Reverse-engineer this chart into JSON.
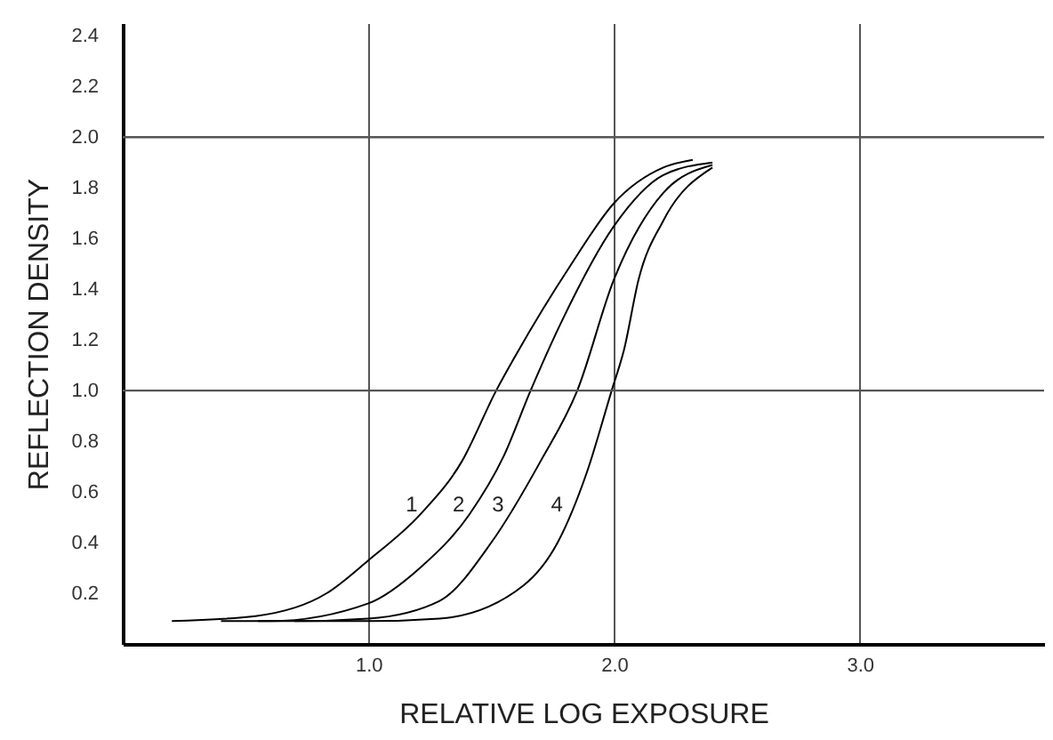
{
  "chart_data": {
    "type": "line",
    "xlabel": "RELATIVE LOG EXPOSURE",
    "ylabel": "REFLECTION DENSITY",
    "xlim": [
      0,
      3.75
    ],
    "ylim": [
      0,
      2.45
    ],
    "xticks": [
      {
        "value": 1,
        "label": "1.0"
      },
      {
        "value": 2,
        "label": "2.0"
      },
      {
        "value": 3,
        "label": "3.0"
      }
    ],
    "yticks": [
      0.2,
      0.4,
      0.6,
      0.8,
      {
        "value": 1,
        "label": "1.0"
      },
      1.2,
      1.4,
      1.6,
      1.8,
      {
        "value": 2,
        "label": "2.0"
      },
      2.2,
      2.4
    ],
    "grid": "x",
    "marker": "none",
    "line_style": "solid",
    "ref_lines": [
      {
        "axis": "y",
        "value": 1,
        "color": "#555555"
      },
      {
        "axis": "y",
        "value": 2,
        "color": "#555555"
      }
    ],
    "series": [
      {
        "name": "1",
        "color": "#000000",
        "x": [
          0.2,
          0.54,
          0.83,
          1.0,
          1.21,
          1.38,
          1.52,
          1.6,
          1.82,
          2.0,
          2.2,
          2.32
        ],
        "values": [
          0.09,
          0.11,
          0.2,
          0.33,
          0.51,
          0.72,
          1.0,
          1.14,
          1.49,
          1.74,
          1.88,
          1.91
        ]
      },
      {
        "name": "2",
        "color": "#000000",
        "x": [
          0.4,
          0.6,
          1.0,
          1.21,
          1.41,
          1.55,
          1.66,
          1.79,
          2.0,
          2.2,
          2.4
        ],
        "values": [
          0.09,
          0.09,
          0.16,
          0.3,
          0.51,
          0.74,
          1.0,
          1.28,
          1.65,
          1.85,
          1.9
        ]
      },
      {
        "name": "3",
        "color": "#000000",
        "x": [
          0.55,
          0.7,
          1.0,
          1.29,
          1.5,
          1.7,
          1.85,
          2.0,
          2.2,
          2.4
        ],
        "values": [
          0.09,
          0.09,
          0.1,
          0.17,
          0.4,
          0.72,
          1.0,
          1.44,
          1.78,
          1.89
        ]
      },
      {
        "name": "4",
        "color": "#000000",
        "x": [
          0.7,
          1.0,
          1.29,
          1.63,
          1.77,
          1.89,
          1.99,
          2.04,
          2.1,
          2.2,
          2.4
        ],
        "values": [
          0.09,
          0.09,
          0.1,
          0.23,
          0.4,
          0.68,
          1.0,
          1.16,
          1.44,
          1.67,
          1.88
        ]
      }
    ]
  }
}
